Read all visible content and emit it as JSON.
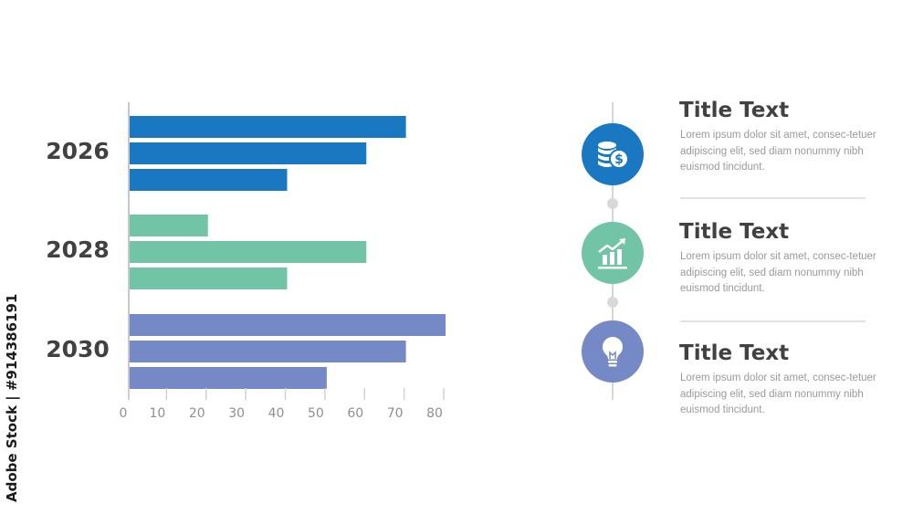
{
  "chart_data": {
    "type": "bar",
    "orientation": "horizontal",
    "categories": [
      "2026",
      "2028",
      "2030"
    ],
    "series": [
      {
        "values": [
          70,
          20,
          80
        ]
      },
      {
        "values": [
          60,
          60,
          70
        ]
      },
      {
        "values": [
          40,
          40,
          50
        ]
      }
    ],
    "category_colors": [
      "#1a78c2",
      "#72c4a6",
      "#7589c7"
    ],
    "xlim": [
      0,
      80
    ],
    "x_ticks": [
      0,
      10,
      20,
      30,
      40,
      50,
      60,
      70,
      80
    ],
    "grid": false
  },
  "watermark": "Adobe Stock | #914386191",
  "items": [
    {
      "title": "Title Text",
      "body": "Lorem ipsum dolor sit amet, consec-tetuer adipiscing elit, sed diam nonummy nibh euismod tincidunt.",
      "icon": "coins-dollar-icon",
      "color": "#1a78c2"
    },
    {
      "title": "Title Text",
      "body": "Lorem ipsum dolor sit amet, consec-tetuer adipiscing elit, sed diam nonummy nibh euismod tincidunt.",
      "icon": "growth-chart-icon",
      "color": "#72c4a6"
    },
    {
      "title": "Title Text",
      "body": "Lorem ipsum dolor sit amet, consec-tetuer adipiscing elit, sed diam nonummy nibh euismod tincidunt.",
      "icon": "lightbulb-icon",
      "color": "#7589c7"
    }
  ]
}
